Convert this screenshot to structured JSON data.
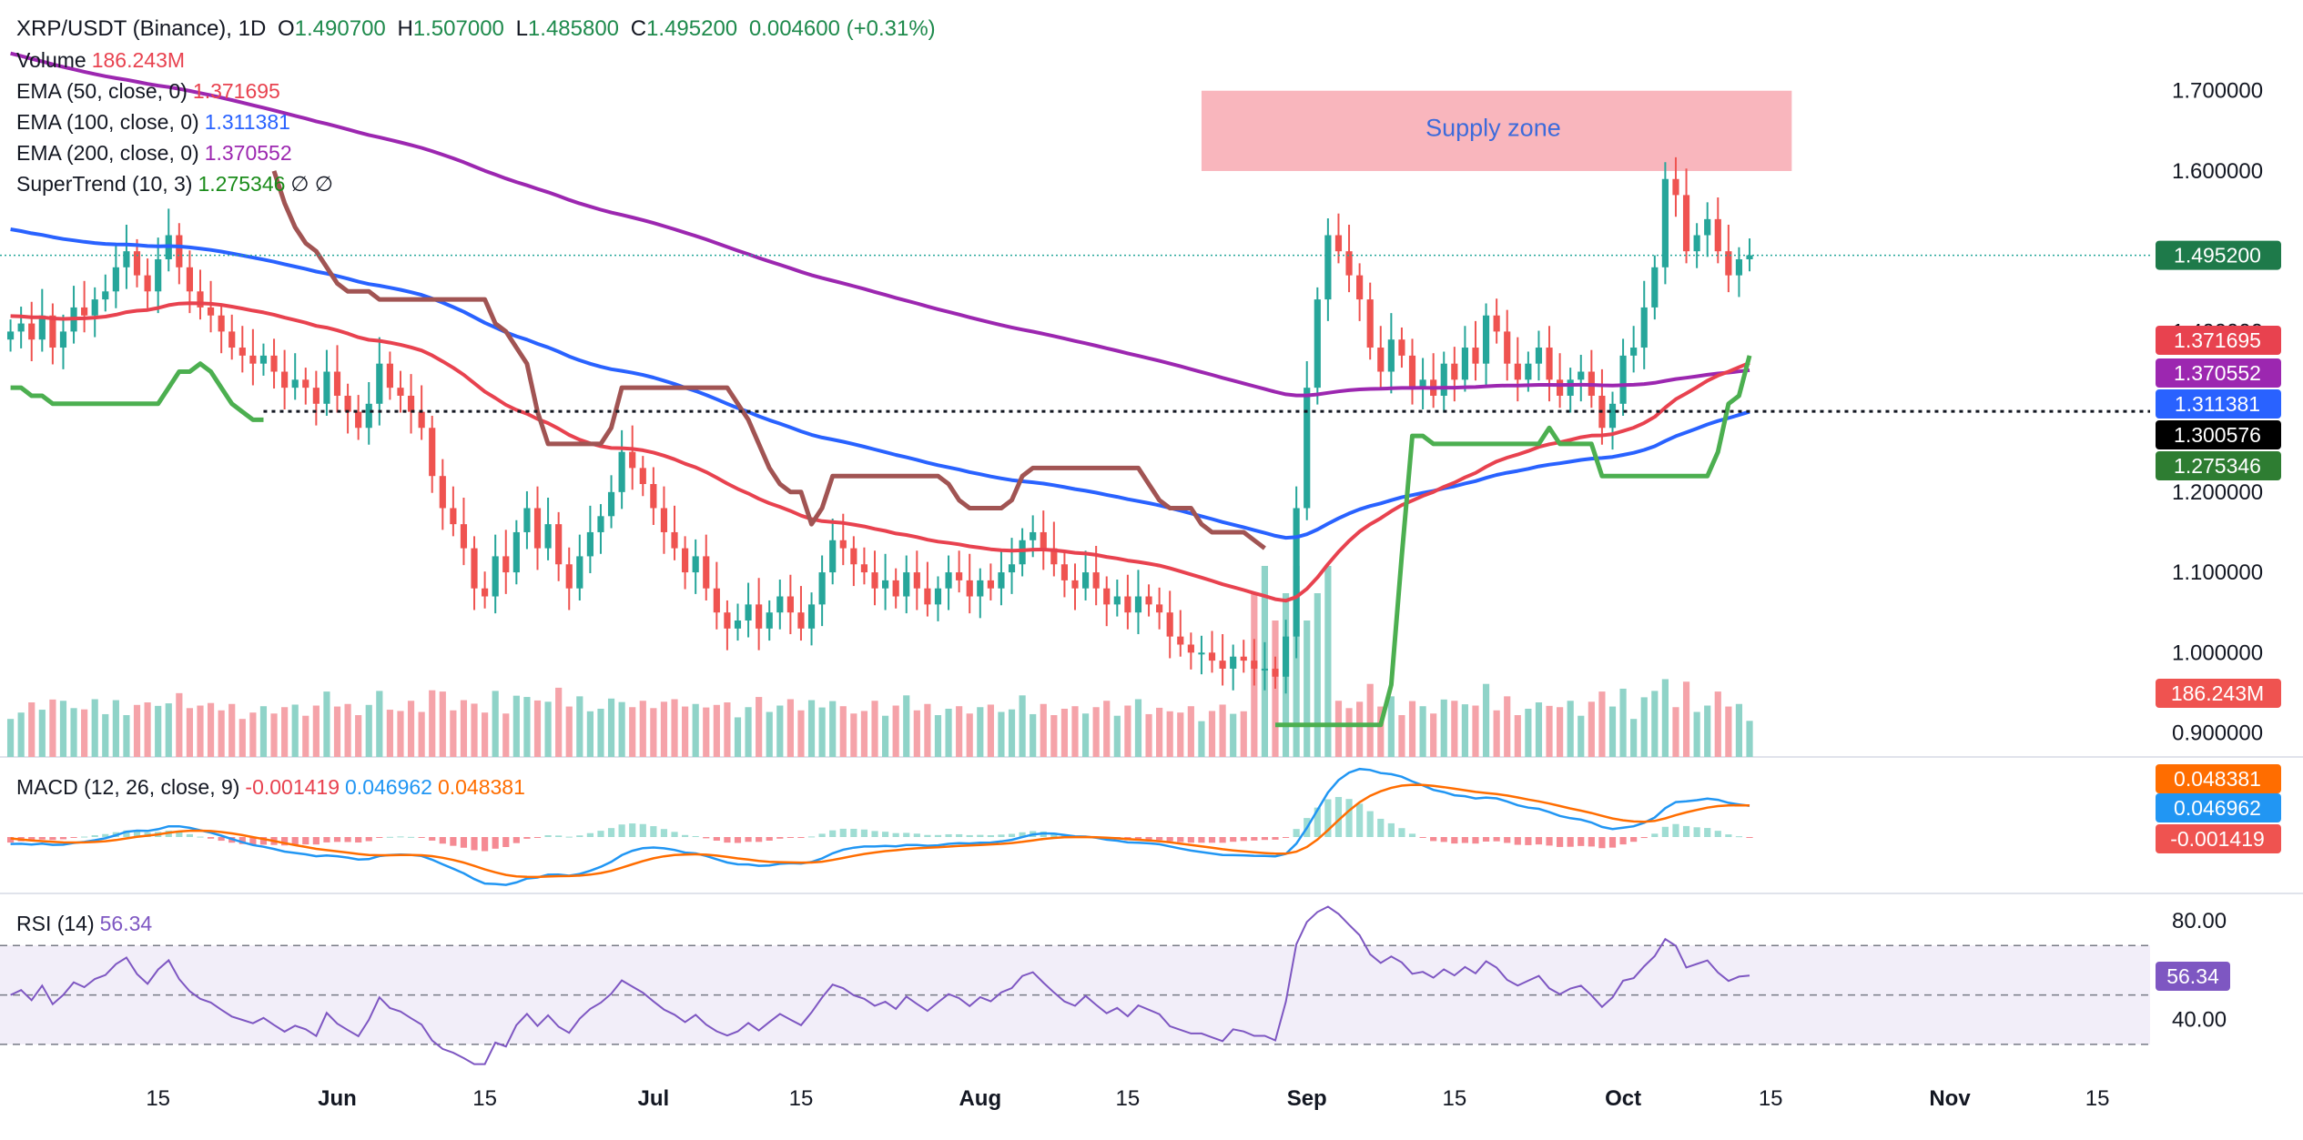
{
  "header": {
    "symbol": "XRP/USDT (Binance), 1D",
    "o_label": "O",
    "o_value": "1.490700",
    "h_label": "H",
    "h_value": "1.507000",
    "l_label": "L",
    "l_value": "1.485800",
    "c_label": "C",
    "c_value": "1.495200",
    "change": "0.004600 (+0.31%)"
  },
  "indicators": {
    "volume": {
      "label": "Volume",
      "value": "186.243M"
    },
    "ema50": {
      "label": "EMA (50, close, 0)",
      "value": "1.371695"
    },
    "ema100": {
      "label": "EMA (100, close, 0)",
      "value": "1.311381"
    },
    "ema200": {
      "label": "EMA (200, close, 0)",
      "value": "1.370552"
    },
    "supertrend": {
      "label": "SuperTrend (10, 3)",
      "value": "1.275346",
      "extra": "∅ ∅"
    },
    "macd": {
      "label": "MACD (12, 26, close, 9)",
      "hist": "-0.001419",
      "macd": "0.046962",
      "signal": "0.048381"
    },
    "rsi": {
      "label": "RSI (14)",
      "value": "56.34"
    }
  },
  "colors": {
    "up": "#26a69a",
    "down": "#ef5350",
    "vol_up": "#8fd3c8",
    "vol_down": "#f5a3a9",
    "ema50": "#e8424f",
    "ema100": "#2962ff",
    "ema200": "#9c27b0",
    "st_up": "#4caf50",
    "st_down": "#a15453",
    "macd": "#2196f3",
    "signal": "#ff6d00",
    "rsi": "#7e57c2",
    "zone": "#f8a9b1"
  },
  "annotations": {
    "supply_zone": {
      "label": "Supply zone",
      "price_top": 1.7,
      "price_bottom": 1.6,
      "start": "2024-08-22",
      "end": "2024-10-17"
    },
    "support_line": {
      "price": 1.300576
    }
  },
  "chart_data": {
    "type": "candlestick",
    "x_ticks": [
      "15",
      "Jun",
      "15",
      "Jul",
      "15",
      "Aug",
      "15",
      "Sep",
      "15",
      "Oct",
      "15",
      "Nov",
      "15"
    ],
    "x_tick_dates": [
      "2024-05-15",
      "2024-06-01",
      "2024-06-15",
      "2024-07-01",
      "2024-07-15",
      "2024-08-01",
      "2024-08-15",
      "2024-09-01",
      "2024-09-15",
      "2024-10-01",
      "2024-10-15",
      "2024-11-01",
      "2024-11-15"
    ],
    "x_range": [
      "2024-04-30",
      "2024-11-20"
    ],
    "price_axis": {
      "ticks": [
        "1.700000",
        "1.600000",
        "1.400000",
        "1.200000",
        "1.100000",
        "1.000000",
        "0.900000"
      ],
      "range": [
        0.87,
        1.745
      ]
    },
    "price_labels": [
      "1.495200",
      "1.371695",
      "1.370552",
      "1.311381",
      "1.300576",
      "1.275346",
      "186.243M"
    ],
    "macd_labels": [
      "0.048381",
      "0.046962",
      "-0.001419"
    ],
    "rsi_axis": {
      "ticks": [
        "80.00",
        "40.00"
      ],
      "bands": [
        70,
        50,
        30
      ],
      "range": [
        20,
        90
      ],
      "label": "56.34"
    },
    "closes": [
      1.4,
      1.41,
      1.39,
      1.42,
      1.38,
      1.4,
      1.43,
      1.42,
      1.44,
      1.45,
      1.48,
      1.5,
      1.47,
      1.45,
      1.49,
      1.52,
      1.48,
      1.45,
      1.43,
      1.42,
      1.4,
      1.38,
      1.37,
      1.36,
      1.37,
      1.35,
      1.33,
      1.34,
      1.33,
      1.31,
      1.35,
      1.32,
      1.3,
      1.28,
      1.31,
      1.36,
      1.33,
      1.32,
      1.3,
      1.28,
      1.22,
      1.18,
      1.16,
      1.13,
      1.08,
      1.07,
      1.12,
      1.1,
      1.15,
      1.18,
      1.13,
      1.16,
      1.11,
      1.08,
      1.12,
      1.15,
      1.17,
      1.2,
      1.25,
      1.23,
      1.21,
      1.18,
      1.15,
      1.13,
      1.1,
      1.12,
      1.08,
      1.05,
      1.03,
      1.04,
      1.06,
      1.03,
      1.05,
      1.07,
      1.05,
      1.03,
      1.06,
      1.1,
      1.14,
      1.13,
      1.11,
      1.1,
      1.08,
      1.09,
      1.07,
      1.1,
      1.08,
      1.06,
      1.08,
      1.1,
      1.09,
      1.07,
      1.09,
      1.08,
      1.1,
      1.11,
      1.14,
      1.15,
      1.13,
      1.11,
      1.09,
      1.08,
      1.1,
      1.08,
      1.06,
      1.07,
      1.05,
      1.07,
      1.06,
      1.05,
      1.02,
      1.01,
      1.0,
      1.0,
      0.99,
      0.98,
      0.995,
      0.99,
      0.98,
      0.98,
      0.97,
      1.02,
      1.18,
      1.33,
      1.44,
      1.52,
      1.5,
      1.47,
      1.44,
      1.38,
      1.35,
      1.39,
      1.37,
      1.33,
      1.34,
      1.32,
      1.36,
      1.34,
      1.38,
      1.36,
      1.42,
      1.4,
      1.36,
      1.34,
      1.36,
      1.38,
      1.34,
      1.32,
      1.34,
      1.35,
      1.32,
      1.28,
      1.31,
      1.37,
      1.38,
      1.43,
      1.48,
      1.59,
      1.57,
      1.5,
      1.52,
      1.54,
      1.5,
      1.47,
      1.49,
      1.495
    ],
    "volume": {
      "last": "186.243M"
    },
    "rsi": {
      "last": 56.34
    }
  }
}
